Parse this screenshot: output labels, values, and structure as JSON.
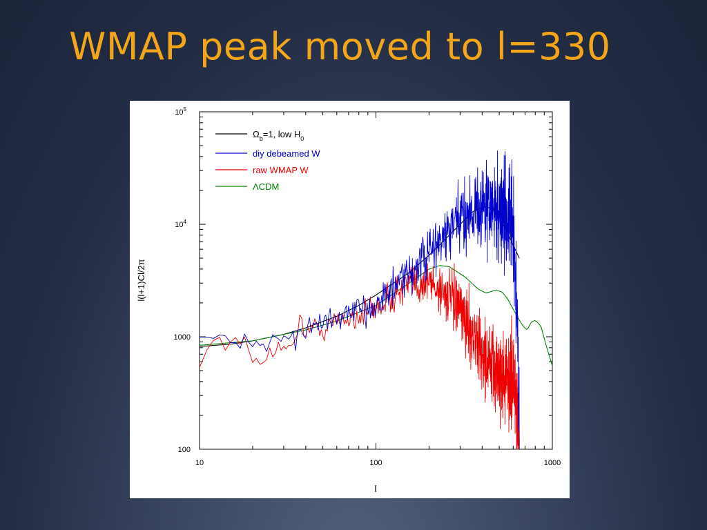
{
  "slide": {
    "title": "WMAP peak moved to l=330",
    "title_color": "#f3a61a",
    "background": "#232d45"
  },
  "chart_data": {
    "type": "line",
    "title": "",
    "xlabel": "l",
    "ylabel": "l(l+1)Cl/2π",
    "x_scale": "log",
    "y_scale": "log",
    "xlim": [
      10,
      1000
    ],
    "ylim": [
      100,
      100000
    ],
    "x_ticks": [
      {
        "value": 10,
        "label": "10"
      },
      {
        "value": 100,
        "label": "100"
      },
      {
        "value": 1000,
        "label": "1000"
      }
    ],
    "y_ticks": [
      {
        "value": 100,
        "label": "100"
      },
      {
        "value": 1000,
        "label": "1000"
      },
      {
        "value": 10000,
        "label": "10",
        "sup": "4"
      },
      {
        "value": 100000,
        "label": "10",
        "sup": "5"
      }
    ],
    "grid": false,
    "legend_position": "top-left",
    "series": [
      {
        "name": "Ωb=1, low H0",
        "legend": {
          "base": "Ω",
          "sub1": "b",
          "mid": "=1, low H",
          "sub2": "0"
        },
        "color": "#000000",
        "noise": 0,
        "points": [
          [
            10,
            820
          ],
          [
            15,
            860
          ],
          [
            20,
            920
          ],
          [
            30,
            1050
          ],
          [
            40,
            1200
          ],
          [
            60,
            1520
          ],
          [
            80,
            1900
          ],
          [
            100,
            2350
          ],
          [
            150,
            3600
          ],
          [
            200,
            5300
          ],
          [
            250,
            7500
          ],
          [
            300,
            10000
          ],
          [
            350,
            12800
          ],
          [
            400,
            14200
          ],
          [
            450,
            14000
          ],
          [
            500,
            11800
          ],
          [
            550,
            8800
          ],
          [
            600,
            6500
          ],
          [
            650,
            5000
          ]
        ]
      },
      {
        "name": "diy debeamed W",
        "color": "#0000cc",
        "noise": 0.22,
        "noise_growth": 1.0,
        "points": [
          [
            10,
            870
          ],
          [
            20,
            900
          ],
          [
            30,
            950
          ],
          [
            40,
            1150
          ],
          [
            50,
            1300
          ],
          [
            60,
            1450
          ],
          [
            80,
            1650
          ],
          [
            100,
            2000
          ],
          [
            120,
            2500
          ],
          [
            150,
            3400
          ],
          [
            200,
            5500
          ],
          [
            250,
            8000
          ],
          [
            300,
            11000
          ],
          [
            350,
            13500
          ],
          [
            400,
            14500
          ],
          [
            450,
            13800
          ],
          [
            500,
            13000
          ],
          [
            550,
            12000
          ],
          [
            600,
            9000
          ],
          [
            620,
            3000
          ],
          [
            640,
            700
          ],
          [
            650,
            200
          ]
        ]
      },
      {
        "name": "raw WMAP W",
        "color": "#ee0000",
        "noise": 0.2,
        "noise_growth": 1.0,
        "points": [
          [
            10,
            540
          ],
          [
            10.5,
            800
          ],
          [
            13,
            960
          ],
          [
            15,
            870
          ],
          [
            18,
            860
          ],
          [
            20,
            620
          ],
          [
            22,
            560
          ],
          [
            25,
            750
          ],
          [
            28,
            900
          ],
          [
            30,
            700
          ],
          [
            35,
            1050
          ],
          [
            38,
            1400
          ],
          [
            40,
            1100
          ],
          [
            45,
            1200
          ],
          [
            50,
            1150
          ],
          [
            60,
            1350
          ],
          [
            80,
            1550
          ],
          [
            100,
            1800
          ],
          [
            150,
            2800
          ],
          [
            200,
            3100
          ],
          [
            250,
            2400
          ],
          [
            300,
            1700
          ],
          [
            350,
            1100
          ],
          [
            400,
            700
          ],
          [
            450,
            530
          ],
          [
            500,
            480
          ],
          [
            550,
            400
          ],
          [
            600,
            430
          ],
          [
            630,
            220
          ],
          [
            650,
            120
          ]
        ]
      },
      {
        "name": "ΛCDM",
        "color": "#008000",
        "noise": 0,
        "points": [
          [
            10,
            840
          ],
          [
            20,
            920
          ],
          [
            30,
            1050
          ],
          [
            40,
            1150
          ],
          [
            60,
            1380
          ],
          [
            80,
            1650
          ],
          [
            100,
            1900
          ],
          [
            150,
            2900
          ],
          [
            200,
            4000
          ],
          [
            230,
            4300
          ],
          [
            260,
            4200
          ],
          [
            320,
            3400
          ],
          [
            380,
            2650
          ],
          [
            420,
            2450
          ],
          [
            480,
            2600
          ],
          [
            520,
            2500
          ],
          [
            560,
            2150
          ],
          [
            620,
            1600
          ],
          [
            680,
            1250
          ],
          [
            720,
            1150
          ],
          [
            760,
            1350
          ],
          [
            800,
            1400
          ],
          [
            860,
            1250
          ],
          [
            920,
            850
          ],
          [
            1000,
            550
          ]
        ]
      }
    ]
  }
}
